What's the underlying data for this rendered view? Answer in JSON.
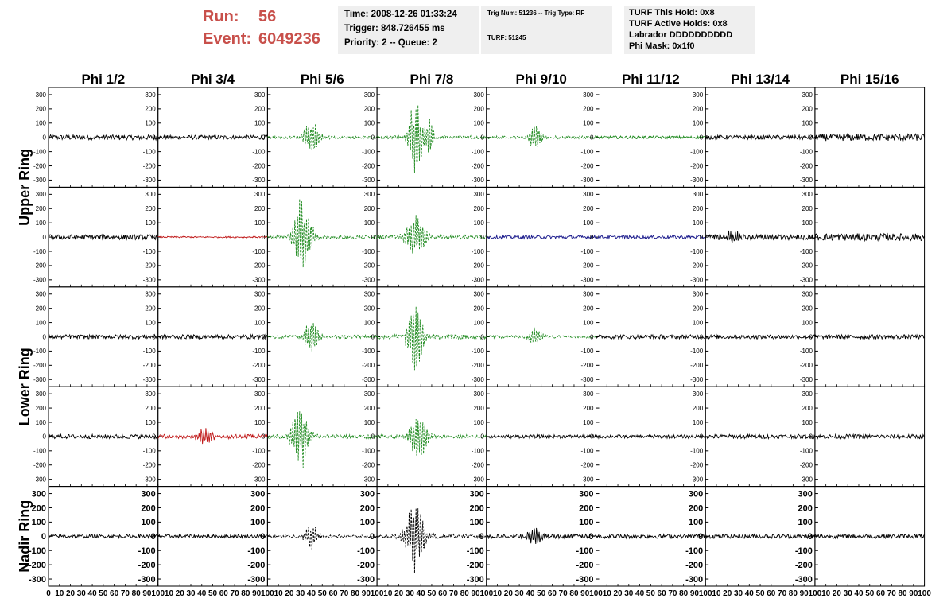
{
  "header": {
    "run_label": "Run:",
    "run_value": "56",
    "event_label": "Event:",
    "event_value": "6049236",
    "time_box": {
      "line1": "Time: 2008-12-26 01:33:24",
      "line2": "Trigger: 848.726455 ms",
      "line3": "Priority: 2 -- Queue: 2"
    },
    "trig_box": {
      "line1": "Trig Num: 51236 -- Trig Type: RF",
      "line2": "TURF: 51245"
    },
    "turf_box": {
      "line1": "TURF This Hold: 0x8",
      "line2": "TURF Active Holds: 0x8",
      "line3": "Labrador DDDDDDDDDD",
      "line4": "Phi Mask: 0x1f0"
    },
    "colors": {
      "run_text": "#c8504b",
      "box_bg": "#efefef"
    }
  },
  "chart_data": {
    "type": "line",
    "description_free": true,
    "columns": [
      "Phi 1/2",
      "Phi 3/4",
      "Phi 5/6",
      "Phi 7/8",
      "Phi 9/10",
      "Phi 11/12",
      "Phi 13/14",
      "Phi 15/16"
    ],
    "ring_labels": [
      {
        "label": "Upper Ring",
        "rows": [
          0,
          1
        ]
      },
      {
        "label": "Lower Ring",
        "rows": [
          2,
          3
        ]
      },
      {
        "label": "Nadir Ring",
        "rows": [
          4
        ]
      }
    ],
    "ylim": [
      -350,
      350
    ],
    "y_ticks": [
      -300,
      -200,
      -100,
      0,
      100,
      200,
      300
    ],
    "xlim": [
      0,
      100
    ],
    "x_ticks": [
      0,
      10,
      20,
      30,
      40,
      50,
      60,
      70,
      80,
      90,
      100
    ],
    "x_tick_labels_bottom_row": "0 10 20 30 40 50 60 70 80 90 100",
    "colors": {
      "black": "#000000",
      "green": "#1e8a1e",
      "red": "#c01818",
      "blue": "#1a1a8c"
    },
    "panels": [
      [
        {
          "color": "black",
          "style": "solid",
          "noise": 18,
          "bursts": []
        },
        {
          "color": "black",
          "style": "solid",
          "noise": 15,
          "bursts": []
        },
        {
          "color": "green",
          "style": "dashed",
          "noise": 10,
          "bursts": [
            {
              "center": 40,
              "width": 7,
              "amp": 140
            }
          ]
        },
        {
          "color": "green",
          "style": "dashed",
          "noise": 12,
          "bursts": [
            {
              "center": 35,
              "width": 6,
              "amp": 320
            },
            {
              "center": 48,
              "width": 4,
              "amp": 140
            }
          ]
        },
        {
          "color": "green",
          "style": "dashed",
          "noise": 10,
          "bursts": [
            {
              "center": 45,
              "width": 6,
              "amp": 100
            }
          ]
        },
        {
          "color": "green",
          "style": "solid",
          "noise": 10,
          "bursts": []
        },
        {
          "color": "black",
          "style": "solid",
          "noise": 15,
          "bursts": []
        },
        {
          "color": "black",
          "style": "solid",
          "noise": 25,
          "bursts": []
        }
      ],
      [
        {
          "color": "black",
          "style": "solid",
          "noise": 18,
          "bursts": []
        },
        {
          "color": "red",
          "style": "solid",
          "noise": 5,
          "bursts": []
        },
        {
          "color": "green",
          "style": "dashed",
          "noise": 12,
          "bursts": [
            {
              "center": 32,
              "width": 8,
              "amp": 300
            }
          ]
        },
        {
          "color": "green",
          "style": "dashed",
          "noise": 15,
          "bursts": [
            {
              "center": 35,
              "width": 9,
              "amp": 170
            }
          ]
        },
        {
          "color": "blue",
          "style": "solid",
          "noise": 12,
          "bursts": []
        },
        {
          "color": "blue",
          "style": "solid",
          "noise": 12,
          "bursts": []
        },
        {
          "color": "black",
          "style": "solid",
          "noise": 20,
          "bursts": [
            {
              "center": 25,
              "width": 6,
              "amp": 60
            }
          ]
        },
        {
          "color": "black",
          "style": "solid",
          "noise": 25,
          "bursts": []
        }
      ],
      [
        {
          "color": "black",
          "style": "solid",
          "noise": 15,
          "bursts": []
        },
        {
          "color": "black",
          "style": "solid",
          "noise": 15,
          "bursts": []
        },
        {
          "color": "green",
          "style": "dashed",
          "noise": 12,
          "bursts": [
            {
              "center": 40,
              "width": 7,
              "amp": 120
            }
          ]
        },
        {
          "color": "green",
          "style": "dashed",
          "noise": 15,
          "bursts": [
            {
              "center": 35,
              "width": 7,
              "amp": 280
            }
          ]
        },
        {
          "color": "green",
          "style": "dashed",
          "noise": 10,
          "bursts": [
            {
              "center": 45,
              "width": 6,
              "amp": 70
            }
          ]
        },
        {
          "color": "black",
          "style": "solid",
          "noise": 15,
          "bursts": []
        },
        {
          "color": "black",
          "style": "solid",
          "noise": 15,
          "bursts": []
        },
        {
          "color": "black",
          "style": "solid",
          "noise": 15,
          "bursts": []
        }
      ],
      [
        {
          "color": "black",
          "style": "solid",
          "noise": 15,
          "bursts": []
        },
        {
          "color": "red",
          "style": "solid",
          "noise": 15,
          "bursts": [
            {
              "center": 42,
              "width": 7,
              "amp": 60
            }
          ]
        },
        {
          "color": "green",
          "style": "dashed",
          "noise": 15,
          "bursts": [
            {
              "center": 30,
              "width": 8,
              "amp": 250
            }
          ]
        },
        {
          "color": "green",
          "style": "dashed",
          "noise": 12,
          "bursts": [
            {
              "center": 38,
              "width": 8,
              "amp": 200
            }
          ]
        },
        {
          "color": "black",
          "style": "solid",
          "noise": 12,
          "bursts": []
        },
        {
          "color": "black",
          "style": "solid",
          "noise": 12,
          "bursts": []
        },
        {
          "color": "black",
          "style": "solid",
          "noise": 15,
          "bursts": []
        },
        {
          "color": "black",
          "style": "solid",
          "noise": 15,
          "bursts": []
        }
      ],
      [
        {
          "color": "black",
          "style": "solid",
          "noise": 12,
          "bursts": []
        },
        {
          "color": "black",
          "style": "solid",
          "noise": 12,
          "bursts": []
        },
        {
          "color": "black",
          "style": "dashed",
          "noise": 10,
          "bursts": [
            {
              "center": 40,
              "width": 6,
              "amp": 110
            }
          ]
        },
        {
          "color": "black",
          "style": "dashed",
          "noise": 15,
          "bursts": [
            {
              "center": 35,
              "width": 9,
              "amp": 260
            }
          ]
        },
        {
          "color": "black",
          "style": "solid",
          "noise": 15,
          "bursts": [
            {
              "center": 45,
              "width": 7,
              "amp": 60
            }
          ]
        },
        {
          "color": "black",
          "style": "solid",
          "noise": 15,
          "bursts": []
        },
        {
          "color": "black",
          "style": "solid",
          "noise": 15,
          "bursts": []
        },
        {
          "color": "black",
          "style": "solid",
          "noise": 15,
          "bursts": []
        }
      ]
    ]
  }
}
